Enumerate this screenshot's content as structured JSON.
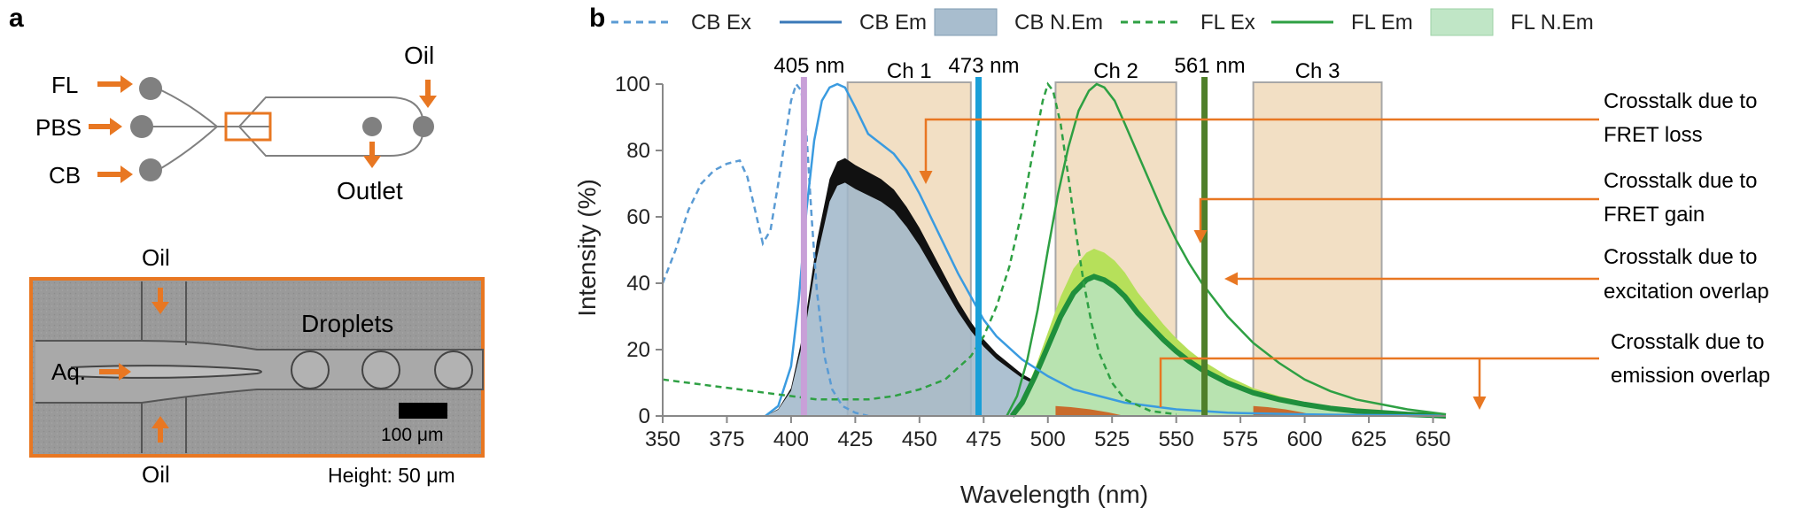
{
  "panel_a": {
    "label": "a",
    "schematic": {
      "inlet_labels": [
        "FL",
        "PBS",
        "CB"
      ],
      "oil_label": "Oil",
      "outlet_label": "Outlet"
    },
    "micrograph": {
      "top_oil_label": "Oil",
      "bottom_oil_label": "Oil",
      "aqueous_label": "Aq.",
      "droplets_label": "Droplets",
      "scale_bar_label": "100 μm",
      "height_label": "Height: 50 μm"
    }
  },
  "panel_b": {
    "label": "b",
    "legend": [
      {
        "label": "CB Ex",
        "style": "dashed",
        "color": "#5a9bd4"
      },
      {
        "label": "CB Em",
        "style": "solid",
        "color": "#3a78b8"
      },
      {
        "label": "CB N.Em",
        "style": "fill",
        "color": "#9fb6c9"
      },
      {
        "label": "FL Ex",
        "style": "dashed",
        "color": "#2ea043"
      },
      {
        "label": "FL Em",
        "style": "solid",
        "color": "#2ea043"
      },
      {
        "label": "FL N.Em",
        "style": "fill",
        "color": "#b9e3c0"
      }
    ],
    "laser_labels": [
      "405 nm",
      "473 nm",
      "561 nm"
    ],
    "channel_labels": [
      "Ch 1",
      "Ch 2",
      "Ch 3"
    ],
    "annotations": [
      "Crosstalk due to",
      "FRET loss",
      "Crosstalk due to",
      "FRET gain",
      "Crosstalk due to",
      "excitation overlap",
      "Crosstalk due to",
      "emission overlap"
    ]
  },
  "chart_data": {
    "type": "line",
    "xlabel": "Wavelength (nm)",
    "ylabel": "Intensity (%)",
    "xlim": [
      350,
      655
    ],
    "ylim": [
      0,
      100
    ],
    "xticks": [
      350,
      375,
      400,
      425,
      450,
      475,
      500,
      525,
      550,
      575,
      600,
      625,
      650
    ],
    "yticks": [
      0,
      20,
      40,
      60,
      80,
      100
    ],
    "grid": false,
    "legend_position": "top",
    "lasers": [
      {
        "wavelength": 405,
        "color": "#c8a0d8"
      },
      {
        "wavelength": 473,
        "color": "#1a9fd8"
      },
      {
        "wavelength": 561,
        "color": "#4f7f2a"
      }
    ],
    "channels": [
      {
        "range": [
          422,
          470
        ],
        "color": "#f2dfc4"
      },
      {
        "range": [
          503,
          550
        ],
        "color": "#f2dfc4"
      },
      {
        "range": [
          580,
          630
        ],
        "color": "#f2dfc4"
      }
    ],
    "series": [
      {
        "name": "CB Ex",
        "style": "dashed",
        "color": "#5a9bd4",
        "x": [
          350,
          355,
          360,
          365,
          370,
          375,
          380,
          383,
          386,
          389,
          392,
          395,
          398,
          400,
          402,
          404,
          406,
          408,
          410,
          413,
          416,
          420,
          425,
          430
        ],
        "y": [
          40,
          50,
          62,
          70,
          74,
          76,
          77,
          72,
          62,
          52,
          56,
          70,
          85,
          95,
          100,
          98,
          85,
          60,
          38,
          18,
          8,
          3,
          1,
          0
        ]
      },
      {
        "name": "CB Em",
        "style": "solid",
        "color": "#3a9be0",
        "x": [
          390,
          395,
          400,
          403,
          406,
          409,
          412,
          415,
          418,
          421,
          425,
          430,
          435,
          440,
          445,
          450,
          455,
          460,
          465,
          470,
          475,
          480,
          490,
          500,
          510,
          520,
          530,
          540,
          550,
          560,
          570,
          580,
          600,
          620,
          640,
          655
        ],
        "y": [
          0,
          3,
          15,
          35,
          62,
          83,
          95,
          99,
          100,
          99,
          93,
          85,
          82,
          79,
          74,
          67,
          59,
          51,
          43,
          36,
          29,
          24,
          17,
          12,
          8,
          6,
          4,
          3,
          2,
          1.5,
          1,
          0.8,
          0.5,
          0.3,
          0.2,
          0.1
        ]
      },
      {
        "name": "CB N.Em",
        "style": "fill",
        "color": "#9fb6c9",
        "x": [
          390,
          395,
          400,
          405,
          410,
          415,
          418,
          421,
          425,
          430,
          435,
          440,
          445,
          450,
          455,
          460,
          465,
          470,
          475,
          480,
          490,
          500,
          510,
          520,
          530,
          540,
          550,
          560,
          580,
          600,
          620,
          640,
          655
        ],
        "y": [
          0,
          2,
          8,
          25,
          50,
          68,
          73,
          74,
          72,
          70,
          68,
          65,
          60,
          54,
          47,
          40,
          33,
          27,
          22,
          18,
          12,
          8,
          5,
          3.5,
          2.5,
          1.8,
          1.2,
          0.8,
          0.5,
          0.3,
          0.2,
          0.1,
          0
        ]
      },
      {
        "name": "FL Ex",
        "style": "dashed",
        "color": "#2ea043",
        "x": [
          350,
          360,
          370,
          380,
          390,
          400,
          410,
          420,
          430,
          440,
          450,
          460,
          470,
          475,
          480,
          485,
          490,
          495,
          498,
          500,
          502,
          505,
          508,
          511,
          514,
          517,
          520,
          525,
          530,
          540,
          550
        ],
        "y": [
          11,
          10,
          9,
          8,
          7,
          6,
          5,
          5,
          5,
          6,
          8,
          11,
          18,
          24,
          33,
          45,
          62,
          83,
          95,
          100,
          98,
          88,
          72,
          55,
          40,
          28,
          19,
          10,
          5,
          1.5,
          0.5
        ]
      },
      {
        "name": "FL Em",
        "style": "solid",
        "color": "#2ea043",
        "x": [
          484,
          488,
          492,
          496,
          500,
          504,
          508,
          512,
          516,
          519,
          522,
          526,
          530,
          535,
          540,
          545,
          550,
          555,
          560,
          565,
          570,
          575,
          580,
          590,
          600,
          610,
          620,
          630,
          640,
          650,
          655
        ],
        "y": [
          0,
          6,
          17,
          32,
          50,
          67,
          81,
          92,
          98,
          100,
          99,
          95,
          88,
          79,
          70,
          61,
          53,
          46,
          40,
          35,
          30,
          26,
          22,
          16,
          11,
          7.5,
          5,
          3.5,
          2,
          1,
          0.5
        ]
      },
      {
        "name": "FL N.Em",
        "style": "fill",
        "color": "#b9e3c0",
        "x": [
          486,
          490,
          495,
          500,
          505,
          510,
          515,
          518,
          522,
          526,
          530,
          535,
          540,
          545,
          550,
          555,
          560,
          565,
          570,
          580,
          590,
          600,
          610,
          620,
          630,
          640,
          650,
          655
        ],
        "y": [
          0,
          4,
          12,
          21,
          30,
          37,
          41,
          42,
          41,
          39,
          36,
          31,
          27,
          23,
          19.5,
          16.5,
          14,
          12,
          10,
          7,
          5,
          3.5,
          2.3,
          1.5,
          1,
          0.5,
          0.2,
          0
        ]
      }
    ]
  }
}
